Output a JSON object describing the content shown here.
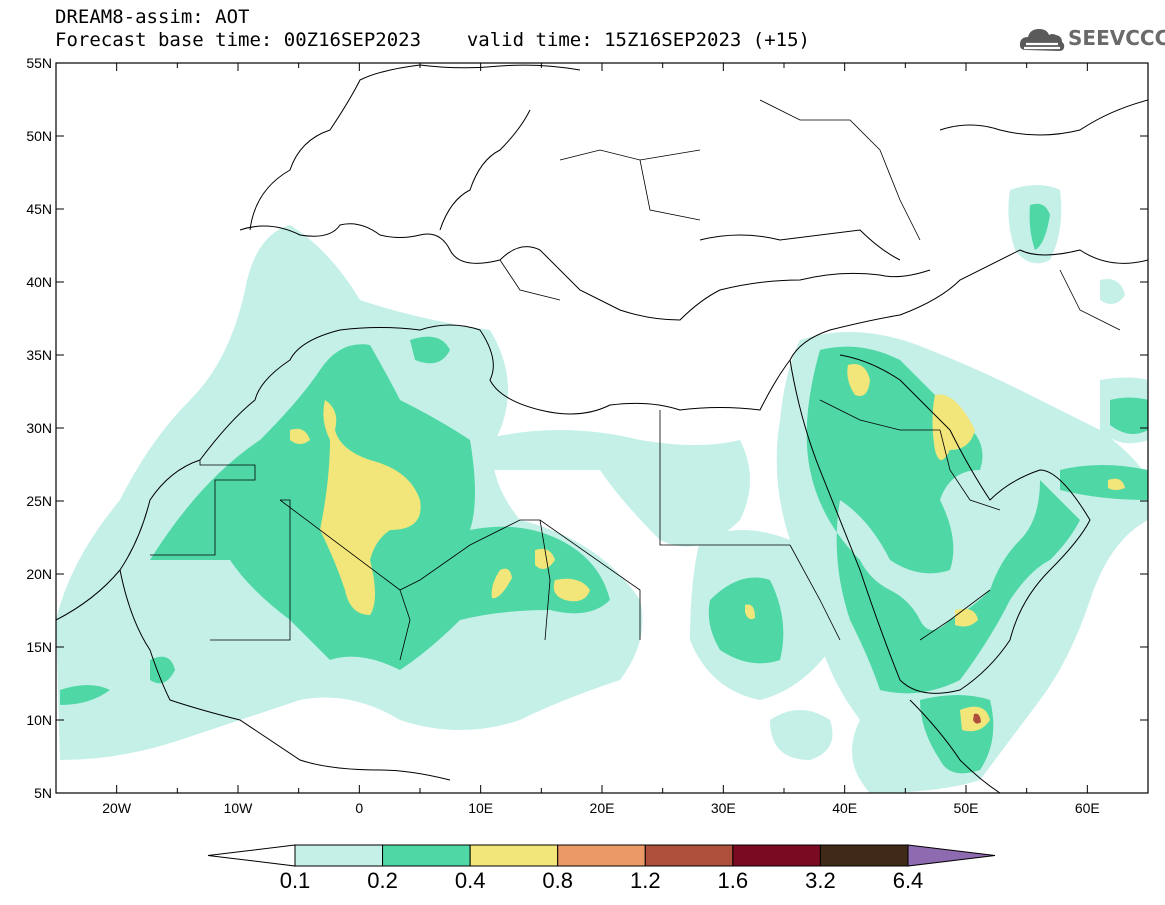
{
  "header": {
    "line1": "DREAM8-assim: AOT",
    "base_label": "Forecast base time: 00Z16SEP2023",
    "valid_label": "valid time: 15Z16SEP2023 (+15)"
  },
  "logo": {
    "text": "SEEVCCC",
    "icon": "cloud-icon"
  },
  "map": {
    "lat_labels": [
      "55N",
      "50N",
      "45N",
      "40N",
      "35N",
      "30N",
      "25N",
      "20N",
      "15N",
      "10N",
      "5N"
    ],
    "lon_labels": [
      "20W",
      "10W",
      "0",
      "10E",
      "20E",
      "30E",
      "40E",
      "50E",
      "60E"
    ],
    "lon_range": [
      -25,
      65
    ],
    "lat_range": [
      5,
      55
    ]
  },
  "legend": {
    "levels": [
      "0.1",
      "0.2",
      "0.4",
      "0.8",
      "1.2",
      "1.6",
      "3.2",
      "6.4"
    ],
    "colors": [
      "#ffffff",
      "#c5f0e8",
      "#4fd8a6",
      "#f2e67a",
      "#eb9966",
      "#ae4f3c",
      "#7a0a22",
      "#3f2a17",
      "#8e6ab0"
    ]
  }
}
